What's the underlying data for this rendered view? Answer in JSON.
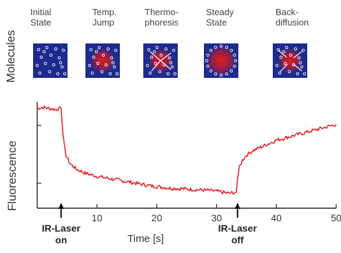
{
  "row_label": "Molecules",
  "stages": [
    {
      "label_lines": [
        "Initial",
        "State"
      ],
      "state": "initial"
    },
    {
      "label_lines": [
        "Temp.",
        "Jump"
      ],
      "state": "temp_jump"
    },
    {
      "label_lines": [
        "Thermo-",
        "phoresis"
      ],
      "state": "thermophoresis"
    },
    {
      "label_lines": [
        "Steady",
        "State"
      ],
      "state": "steady"
    },
    {
      "label_lines": [
        "Back-",
        "diffusion"
      ],
      "state": "backdiffusion"
    }
  ],
  "colors": {
    "panel_bg": "#1d2a8e",
    "hot_spot": "#e01a1a",
    "curve": "#e3262b",
    "axis": "#222222"
  },
  "chart_data": {
    "type": "line",
    "ylabel": "Fluorescence",
    "xlabel": "Time [s]",
    "xlim": [
      0,
      50
    ],
    "ylim": [
      0,
      1
    ],
    "x_ticks": [
      10,
      20,
      30,
      40,
      50
    ],
    "y_ticks_shown": 2,
    "annotations": [
      {
        "x": 4,
        "label_lines": [
          "IR-Laser",
          "on"
        ]
      },
      {
        "x": 33.5,
        "label_lines": [
          "IR-Laser",
          "off"
        ]
      }
    ],
    "series": [
      {
        "x": [
          0,
          1,
          2,
          3,
          4,
          4.3,
          4.8,
          5.5,
          6.5,
          8,
          10,
          13,
          16,
          19,
          22,
          25,
          28,
          30,
          32,
          33.3,
          33.5,
          33.8,
          34.3,
          35,
          36,
          38,
          40,
          42,
          44,
          46,
          48,
          50
        ],
        "y": [
          0.94,
          0.95,
          0.94,
          0.93,
          0.94,
          0.7,
          0.5,
          0.42,
          0.37,
          0.33,
          0.3,
          0.27,
          0.24,
          0.21,
          0.19,
          0.18,
          0.17,
          0.16,
          0.14,
          0.15,
          0.28,
          0.38,
          0.45,
          0.5,
          0.54,
          0.59,
          0.64,
          0.67,
          0.7,
          0.73,
          0.76,
          0.79
        ]
      }
    ]
  }
}
